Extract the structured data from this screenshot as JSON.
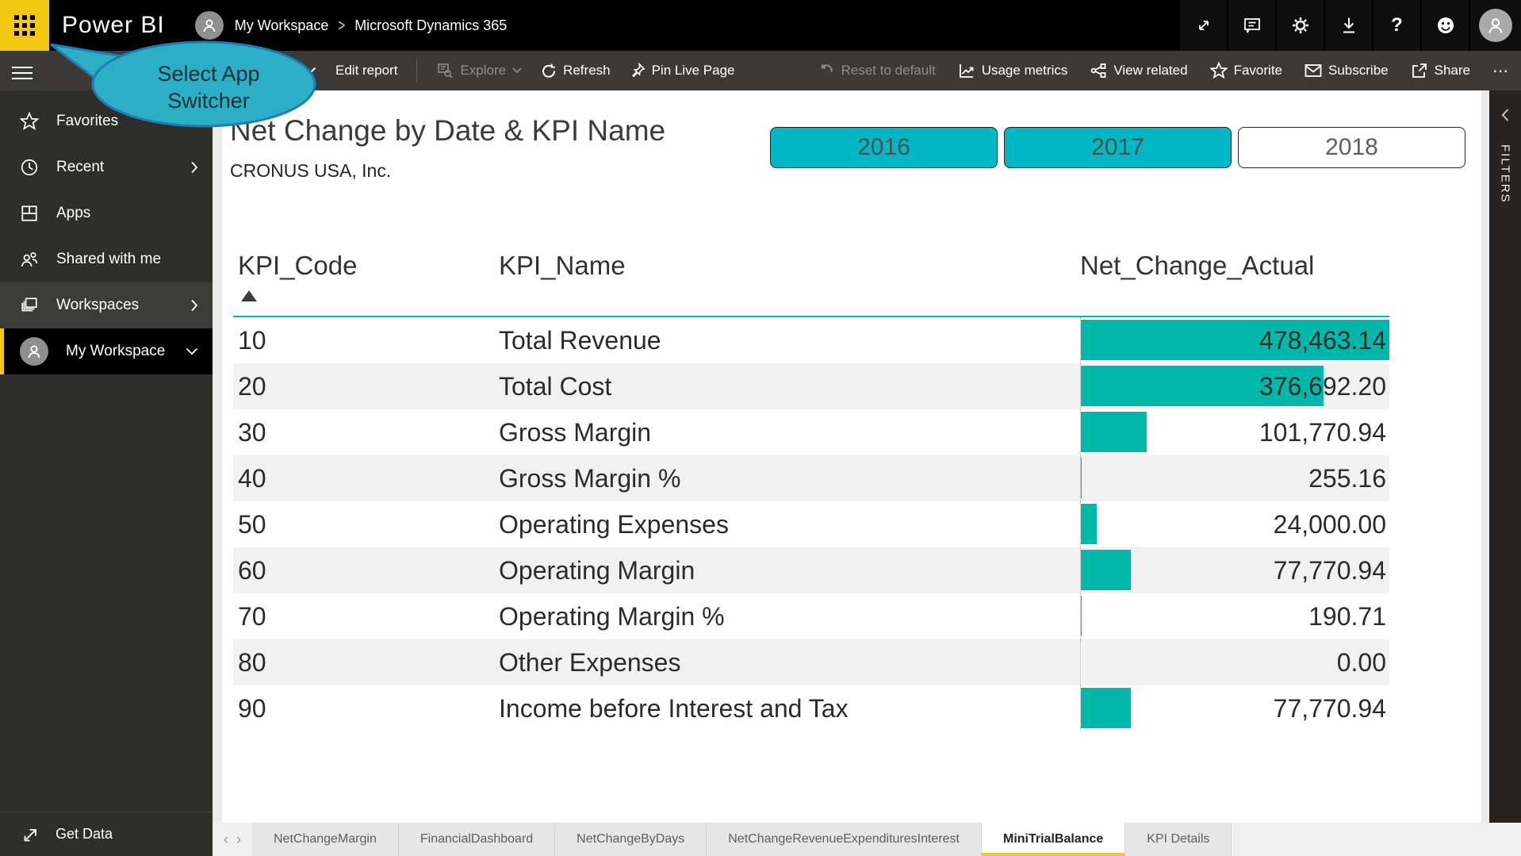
{
  "topbar": {
    "app_name": "Power BI",
    "breadcrumb": {
      "workspace": "My Workspace",
      "separator": ">",
      "page": "Microsoft Dynamics 365"
    },
    "help_label": "?"
  },
  "callout": {
    "line1": "Select App",
    "line2": "Switcher"
  },
  "toolbar": {
    "edit_report": "Edit report",
    "explore": "Explore",
    "refresh": "Refresh",
    "pin_live_page": "Pin Live Page",
    "reset_to_default": "Reset to default",
    "usage_metrics": "Usage metrics",
    "view_related": "View related",
    "favorite": "Favorite",
    "subscribe": "Subscribe",
    "share": "Share",
    "more": "⋯"
  },
  "sidebar": {
    "items": [
      {
        "label": "Favorites",
        "icon": "star-icon",
        "chevron": null,
        "active": false
      },
      {
        "label": "Recent",
        "icon": "clock-icon",
        "chevron": "right",
        "active": false
      },
      {
        "label": "Apps",
        "icon": "apps-icon",
        "chevron": null,
        "active": false
      },
      {
        "label": "Shared with me",
        "icon": "people-icon",
        "chevron": null,
        "active": false
      },
      {
        "label": "Workspaces",
        "icon": "workspaces-icon",
        "chevron": "right",
        "active": false
      },
      {
        "label": "My Workspace",
        "icon": "avatar-icon",
        "chevron": "down",
        "active": true
      }
    ],
    "get_data": "Get Data"
  },
  "report": {
    "title": "Net Change by Date & KPI Name",
    "subtitle": "CRONUS USA, Inc.",
    "year_slicer": [
      {
        "label": "2016",
        "selected": true
      },
      {
        "label": "2017",
        "selected": true
      },
      {
        "label": "2018",
        "selected": false
      }
    ],
    "filters_panel_label": "FILTERS"
  },
  "table": {
    "columns": [
      "KPI_Code",
      "KPI_Name",
      "Net_Change_Actual"
    ],
    "sorted_by": "KPI_Code",
    "sort_direction": "ascending",
    "max_value": 478463.14,
    "rows": [
      {
        "code": "10",
        "name": "Total Revenue",
        "value": 478463.14,
        "display": "478,463.14"
      },
      {
        "code": "20",
        "name": "Total Cost",
        "value": 376692.2,
        "display": "376,692.20"
      },
      {
        "code": "30",
        "name": "Gross Margin",
        "value": 101770.94,
        "display": "101,770.94"
      },
      {
        "code": "40",
        "name": "Gross Margin %",
        "value": 255.16,
        "display": "255.16"
      },
      {
        "code": "50",
        "name": "Operating Expenses",
        "value": 24000.0,
        "display": "24,000.00"
      },
      {
        "code": "60",
        "name": "Operating Margin",
        "value": 77770.94,
        "display": "77,770.94"
      },
      {
        "code": "70",
        "name": "Operating Margin %",
        "value": 190.71,
        "display": "190.71"
      },
      {
        "code": "80",
        "name": "Other Expenses",
        "value": 0.0,
        "display": "0.00"
      },
      {
        "code": "90",
        "name": "Income before Interest and Tax",
        "value": 77770.94,
        "display": "77,770.94"
      }
    ]
  },
  "tabs": {
    "items": [
      {
        "label": "NetChangeMargin",
        "active": false
      },
      {
        "label": "FinancialDashboard",
        "active": false
      },
      {
        "label": "NetChangeByDays",
        "active": false
      },
      {
        "label": "NetChangeRevenueExpendituresInterest",
        "active": false
      },
      {
        "label": "MiniTrialBalance",
        "active": true
      },
      {
        "label": "KPI Details",
        "active": false
      }
    ]
  },
  "colors": {
    "accent_yellow": "#F2C811",
    "slicer_teal": "#00B7C3",
    "bar_teal": "#00B8AA",
    "callout_fill": "#2BAEC6",
    "callout_border": "#1E7DB2"
  }
}
